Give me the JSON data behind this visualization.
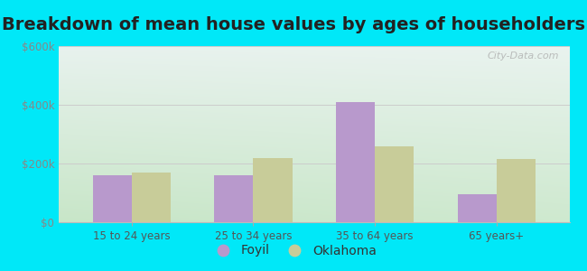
{
  "title": "Breakdown of mean house values by ages of householders",
  "categories": [
    "15 to 24 years",
    "25 to 34 years",
    "35 to 64 years",
    "65 years+"
  ],
  "foyil_values": [
    160000,
    160000,
    410000,
    95000
  ],
  "oklahoma_values": [
    170000,
    220000,
    260000,
    215000
  ],
  "foyil_color": "#b899cc",
  "oklahoma_color": "#c8cc99",
  "ylim": [
    0,
    600000
  ],
  "yticks": [
    0,
    200000,
    400000,
    600000
  ],
  "ytick_labels": [
    "$0",
    "$200k",
    "$400k",
    "$600k"
  ],
  "bg_top_color": "#e8f0ee",
  "bg_bottom_color": "#d8ecd4",
  "outer_bg": "#00e8f8",
  "watermark": "City-Data.com",
  "legend_labels": [
    "Foyil",
    "Oklahoma"
  ],
  "title_fontsize": 14,
  "bar_width": 0.32
}
